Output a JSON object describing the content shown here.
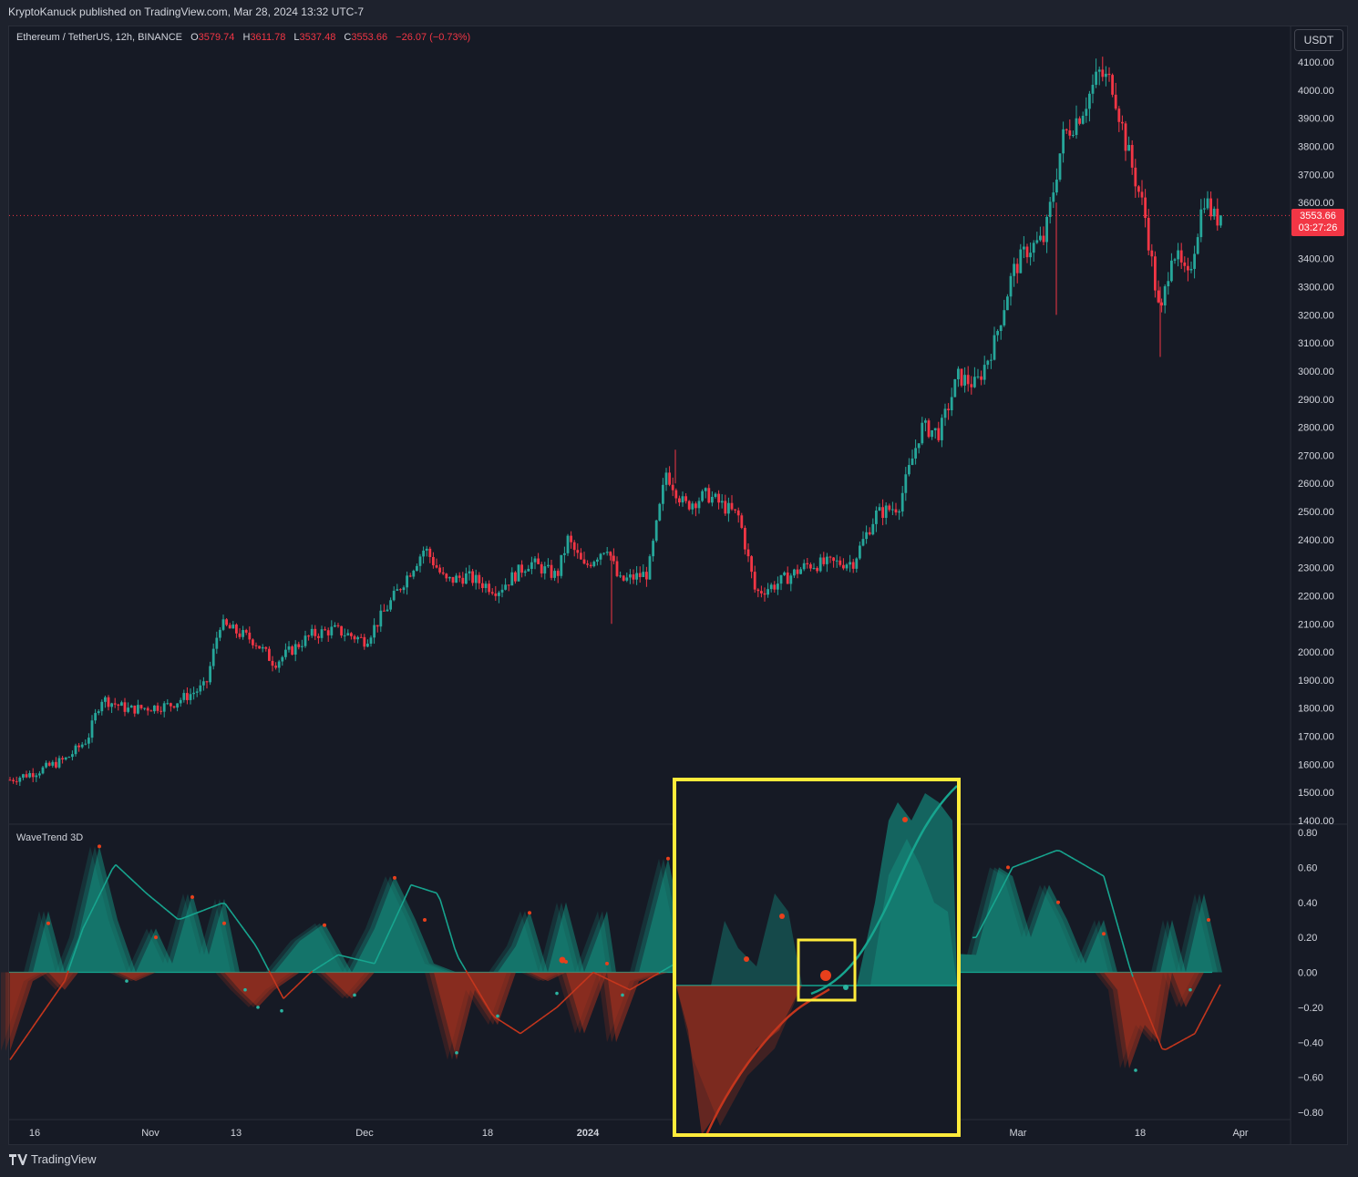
{
  "header": {
    "publisher_line": "KryptoKanuck published on TradingView.com, Mar 28, 2024 13:32 UTC-7"
  },
  "symbol": {
    "name": "Ethereum / TetherUS, 12h, BINANCE",
    "open_label": "O",
    "open": "3579.74",
    "high_label": "H",
    "high": "3611.78",
    "low_label": "L",
    "low": "3537.48",
    "close_label": "C",
    "close": "3553.66",
    "change": "−26.07 (−0.73%)"
  },
  "currency_button": "USDT",
  "last_price": {
    "price": "3553.66",
    "countdown": "03:27:26"
  },
  "indicator": {
    "name": "WaveTrend 3D"
  },
  "footer": {
    "brand": "TradingView"
  },
  "colors": {
    "up": "#26a69a",
    "down": "#f23645",
    "teal": "#14a38f",
    "red": "#c4361d",
    "highlight": "#ffeb3b",
    "background": "#161a25"
  },
  "chart_data": [
    {
      "type": "candlestick",
      "title": "Ethereum / TetherUS, 12h, BINANCE",
      "ylim": [
        1400,
        4150
      ],
      "y_ticks": [
        "4100.00",
        "4000.00",
        "3900.00",
        "3800.00",
        "3700.00",
        "3600.00",
        "3400.00",
        "3300.00",
        "3200.00",
        "3100.00",
        "3000.00",
        "2900.00",
        "2800.00",
        "2700.00",
        "2600.00",
        "2500.00",
        "2400.00",
        "2300.00",
        "2200.00",
        "2100.00",
        "2000.00",
        "1900.00",
        "1800.00",
        "1700.00",
        "1600.00",
        "1500.00",
        "1400.00"
      ],
      "x_ticks": [
        "16",
        "Nov",
        "13",
        "Dec",
        "18",
        "2024",
        "Mar",
        "18",
        "Apr"
      ],
      "last_close": 3553.66,
      "price_path": [
        {
          "t": 0,
          "p": 1545
        },
        {
          "t": 30,
          "p": 1575
        },
        {
          "t": 62,
          "p": 1620
        },
        {
          "t": 85,
          "p": 1690
        },
        {
          "t": 100,
          "p": 1835
        },
        {
          "t": 130,
          "p": 1795
        },
        {
          "t": 175,
          "p": 1810
        },
        {
          "t": 215,
          "p": 1880
        },
        {
          "t": 230,
          "p": 2100
        },
        {
          "t": 268,
          "p": 2040
        },
        {
          "t": 290,
          "p": 1960
        },
        {
          "t": 330,
          "p": 2060
        },
        {
          "t": 355,
          "p": 2080
        },
        {
          "t": 390,
          "p": 2040
        },
        {
          "t": 420,
          "p": 2190
        },
        {
          "t": 455,
          "p": 2370
        },
        {
          "t": 478,
          "p": 2250
        },
        {
          "t": 500,
          "p": 2270
        },
        {
          "t": 535,
          "p": 2220
        },
        {
          "t": 570,
          "p": 2320
        },
        {
          "t": 600,
          "p": 2270
        },
        {
          "t": 612,
          "p": 2400
        },
        {
          "t": 630,
          "p": 2300
        },
        {
          "t": 655,
          "p": 2380
        },
        {
          "t": 668,
          "p": 2250
        },
        {
          "t": 700,
          "p": 2280
        },
        {
          "t": 720,
          "p": 2640
        },
        {
          "t": 740,
          "p": 2520
        },
        {
          "t": 765,
          "p": 2560
        },
        {
          "t": 800,
          "p": 2480
        },
        {
          "t": 818,
          "p": 2210
        },
        {
          "t": 840,
          "p": 2240
        },
        {
          "t": 875,
          "p": 2310
        },
        {
          "t": 925,
          "p": 2320
        },
        {
          "t": 950,
          "p": 2490
        },
        {
          "t": 975,
          "p": 2520
        },
        {
          "t": 1000,
          "p": 2800
        },
        {
          "t": 1020,
          "p": 2780
        },
        {
          "t": 1040,
          "p": 2980
        },
        {
          "t": 1060,
          "p": 2950
        },
        {
          "t": 1080,
          "p": 3100
        },
        {
          "t": 1100,
          "p": 3350
        },
        {
          "t": 1115,
          "p": 3430
        },
        {
          "t": 1135,
          "p": 3470
        },
        {
          "t": 1155,
          "p": 3830
        },
        {
          "t": 1175,
          "p": 3920
        },
        {
          "t": 1195,
          "p": 4060
        },
        {
          "t": 1210,
          "p": 4020
        },
        {
          "t": 1225,
          "p": 3800
        },
        {
          "t": 1245,
          "p": 3560
        },
        {
          "t": 1262,
          "p": 3180
        },
        {
          "t": 1275,
          "p": 3440
        },
        {
          "t": 1292,
          "p": 3320
        },
        {
          "t": 1310,
          "p": 3620
        },
        {
          "t": 1322,
          "p": 3540
        },
        {
          "t": 1330,
          "p": 3554
        }
      ]
    },
    {
      "type": "area",
      "title": "WaveTrend 3D",
      "ylim": [
        -0.8,
        0.8
      ],
      "y_ticks": [
        "0.80",
        "0.60",
        "0.40",
        "0.20",
        "0.00",
        "−0.20",
        "−0.40",
        "−0.60",
        "−0.80"
      ],
      "oscillator": [
        {
          "t": 0,
          "v": -0.45
        },
        {
          "t": 25,
          "v": -0.05
        },
        {
          "t": 42,
          "v": 0.35
        },
        {
          "t": 60,
          "v": -0.1
        },
        {
          "t": 75,
          "v": 0.2
        },
        {
          "t": 98,
          "v": 0.72
        },
        {
          "t": 118,
          "v": 0.3
        },
        {
          "t": 138,
          "v": -0.05
        },
        {
          "t": 160,
          "v": 0.25
        },
        {
          "t": 178,
          "v": 0.05
        },
        {
          "t": 200,
          "v": 0.45
        },
        {
          "t": 218,
          "v": 0.1
        },
        {
          "t": 235,
          "v": 0.42
        },
        {
          "t": 252,
          "v": -0.1
        },
        {
          "t": 272,
          "v": -0.2
        },
        {
          "t": 290,
          "v": -0.1
        },
        {
          "t": 318,
          "v": 0.18
        },
        {
          "t": 345,
          "v": 0.28
        },
        {
          "t": 375,
          "v": -0.15
        },
        {
          "t": 400,
          "v": 0.25
        },
        {
          "t": 422,
          "v": 0.55
        },
        {
          "t": 445,
          "v": 0.3
        },
        {
          "t": 465,
          "v": 0.05
        },
        {
          "t": 490,
          "v": -0.5
        },
        {
          "t": 510,
          "v": -0.1
        },
        {
          "t": 535,
          "v": -0.3
        },
        {
          "t": 555,
          "v": 0.15
        },
        {
          "t": 570,
          "v": 0.35
        },
        {
          "t": 590,
          "v": -0.05
        },
        {
          "t": 610,
          "v": 0.4
        },
        {
          "t": 630,
          "v": -0.35
        },
        {
          "t": 655,
          "v": 0.35
        },
        {
          "t": 665,
          "v": -0.4
        },
        {
          "t": 690,
          "v": -0.05
        },
        {
          "t": 722,
          "v": 0.65
        },
        {
          "t": 740,
          "v": 0.2
        }
      ],
      "signal": [
        {
          "t": 0,
          "v": -0.5
        },
        {
          "t": 60,
          "v": -0.05
        },
        {
          "t": 80,
          "v": 0.25
        },
        {
          "t": 115,
          "v": 0.62
        },
        {
          "t": 150,
          "v": 0.45
        },
        {
          "t": 185,
          "v": 0.3
        },
        {
          "t": 235,
          "v": 0.4
        },
        {
          "t": 270,
          "v": 0.15
        },
        {
          "t": 300,
          "v": -0.15
        },
        {
          "t": 330,
          "v": 0.0
        },
        {
          "t": 360,
          "v": 0.1
        },
        {
          "t": 400,
          "v": 0.05
        },
        {
          "t": 440,
          "v": 0.5
        },
        {
          "t": 470,
          "v": 0.45
        },
        {
          "t": 490,
          "v": 0.1
        },
        {
          "t": 530,
          "v": -0.25
        },
        {
          "t": 560,
          "v": -0.35
        },
        {
          "t": 600,
          "v": -0.2
        },
        {
          "t": 640,
          "v": 0.0
        },
        {
          "t": 680,
          "v": -0.1
        },
        {
          "t": 730,
          "v": 0.05
        }
      ]
    }
  ]
}
